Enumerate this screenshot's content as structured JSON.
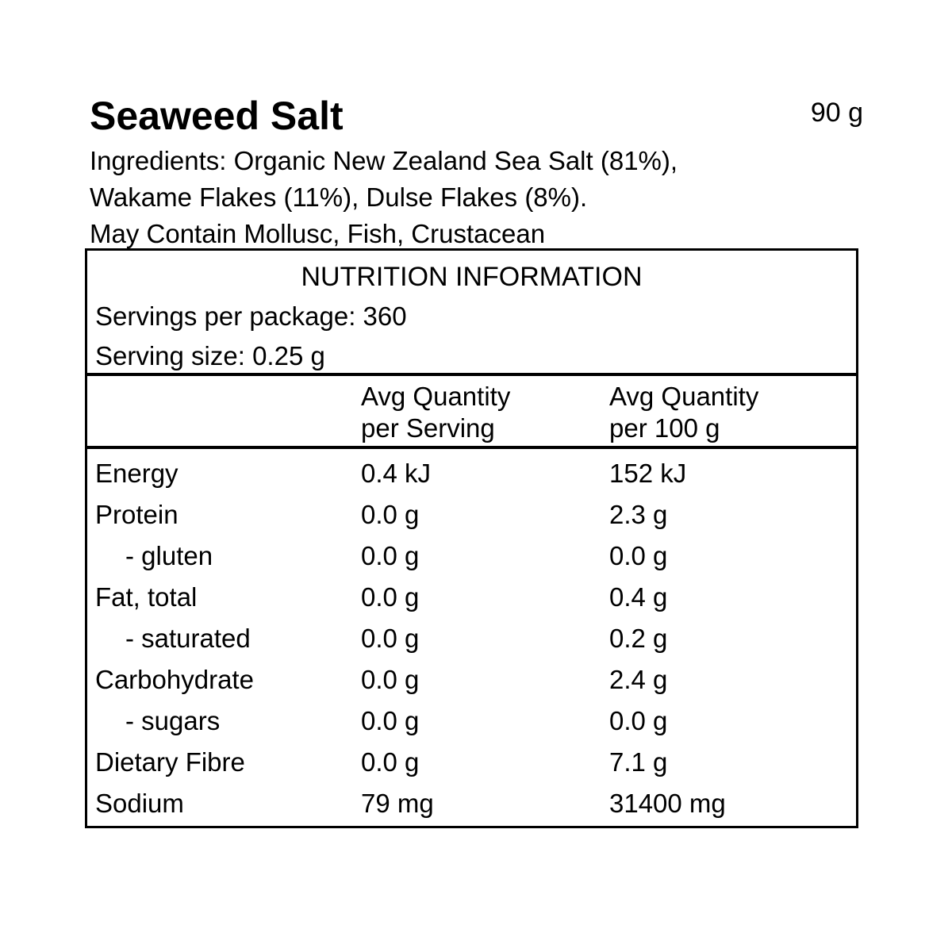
{
  "product": {
    "name": "Seaweed Salt",
    "net_weight": "90 g",
    "ingredients_lines": [
      "Ingredients: Organic New Zealand Sea Salt (81%),",
      "Wakame Flakes (11%), Dulse Flakes (8%).",
      "May Contain Mollusc, Fish, Crustacean"
    ]
  },
  "nutrition": {
    "title": "NUTRITION INFORMATION",
    "servings_per_package": "Servings per package: 360",
    "serving_size": "Serving size: 0.25 g",
    "columns": {
      "per_serving_line1": "Avg Quantity",
      "per_serving_line2": "per Serving",
      "per_100g_line1": "Avg Quantity",
      "per_100g_line2": "per 100 g"
    },
    "rows": [
      {
        "nutrient": "Energy",
        "per_serving": "0.4 kJ",
        "per_100g": "152 kJ",
        "indent": false
      },
      {
        "nutrient": "Protein",
        "per_serving": "0.0 g",
        "per_100g": "2.3 g",
        "indent": false
      },
      {
        "nutrient": "- gluten",
        "per_serving": "0.0 g",
        "per_100g": "0.0 g",
        "indent": true
      },
      {
        "nutrient": "Fat, total",
        "per_serving": "0.0 g",
        "per_100g": "0.4 g",
        "indent": false
      },
      {
        "nutrient": "- saturated",
        "per_serving": "0.0 g",
        "per_100g": "0.2 g",
        "indent": true
      },
      {
        "nutrient": "Carbohydrate",
        "per_serving": "0.0 g",
        "per_100g": "2.4 g",
        "indent": false
      },
      {
        "nutrient": "- sugars",
        "per_serving": "0.0 g",
        "per_100g": "0.0 g",
        "indent": true
      },
      {
        "nutrient": "Dietary Fibre",
        "per_serving": "0.0 g",
        "per_100g": "7.1 g",
        "indent": false
      },
      {
        "nutrient": "Sodium",
        "per_serving": "79 mg",
        "per_100g": "31400 mg",
        "indent": false
      }
    ],
    "text_color": "#000000",
    "border_color": "#000000",
    "background_color": "#ffffff"
  }
}
